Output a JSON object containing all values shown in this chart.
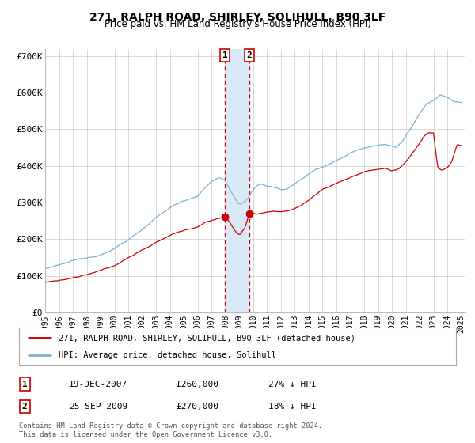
{
  "title": "271, RALPH ROAD, SHIRLEY, SOLIHULL, B90 3LF",
  "subtitle": "Price paid vs. HM Land Registry's House Price Index (HPI)",
  "legend_label_red": "271, RALPH ROAD, SHIRLEY, SOLIHULL, B90 3LF (detached house)",
  "legend_label_blue": "HPI: Average price, detached house, Solihull",
  "annotation1_date": "19-DEC-2007",
  "annotation1_price": "£260,000",
  "annotation1_hpi": "27% ↓ HPI",
  "annotation1_year": 2007.96,
  "annotation1_value": 260000,
  "annotation2_date": "25-SEP-2009",
  "annotation2_price": "£270,000",
  "annotation2_hpi": "18% ↓ HPI",
  "annotation2_year": 2009.73,
  "annotation2_value": 270000,
  "footer_line1": "Contains HM Land Registry data © Crown copyright and database right 2024.",
  "footer_line2": "This data is licensed under the Open Government Licence v3.0.",
  "ylim": [
    0,
    720000
  ],
  "xlim_start": 1995.0,
  "xlim_end": 2025.3,
  "yticks": [
    0,
    100000,
    200000,
    300000,
    400000,
    500000,
    600000,
    700000
  ],
  "ytick_labels": [
    "£0",
    "£100K",
    "£200K",
    "£300K",
    "£400K",
    "£500K",
    "£600K",
    "£700K"
  ],
  "xticks": [
    1995,
    1996,
    1997,
    1998,
    1999,
    2000,
    2001,
    2002,
    2003,
    2004,
    2005,
    2006,
    2007,
    2008,
    2009,
    2010,
    2011,
    2012,
    2013,
    2014,
    2015,
    2016,
    2017,
    2018,
    2019,
    2020,
    2021,
    2022,
    2023,
    2024,
    2025
  ],
  "red_color": "#cc0000",
  "blue_color": "#7ab0d4",
  "shading_color": "#d8eaf7",
  "grid_color": "#cccccc",
  "background_color": "#ffffff",
  "box_color": "#cc0000"
}
